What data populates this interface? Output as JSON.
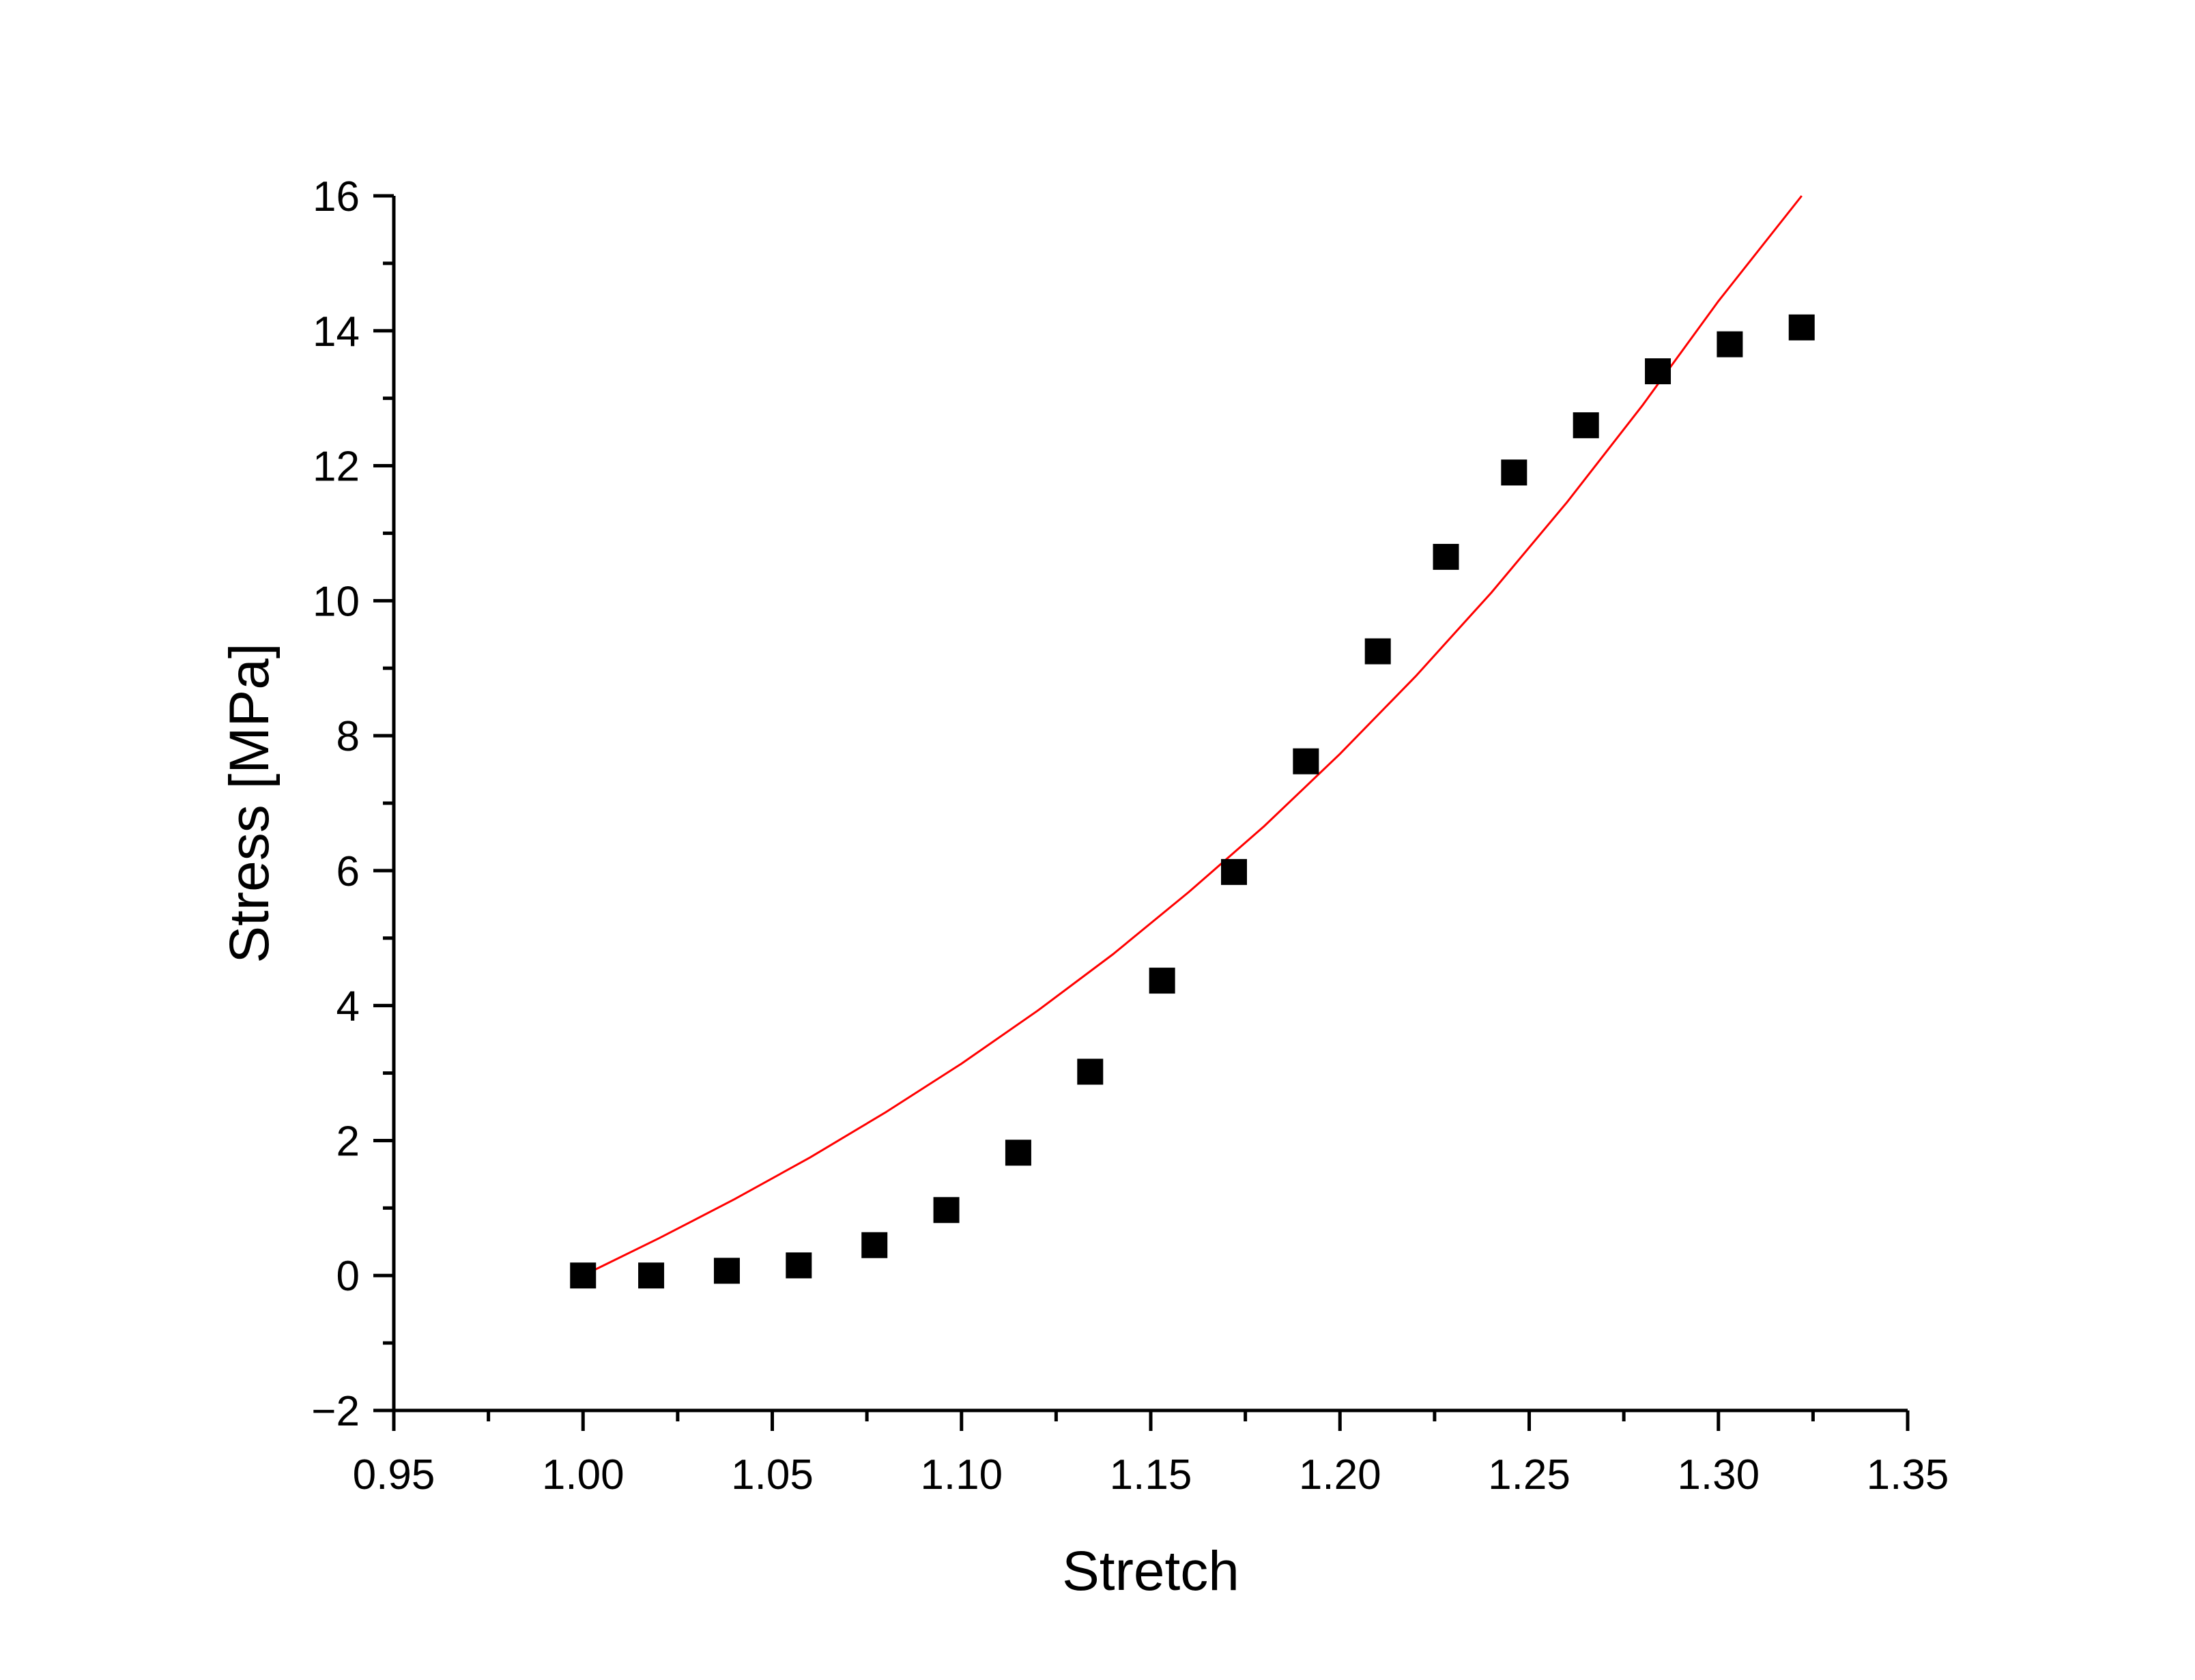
{
  "chart_data": {
    "type": "scatter",
    "title": "",
    "xlabel": "Stretch",
    "ylabel": "Stress [MPa]",
    "xlim": [
      0.95,
      1.35
    ],
    "ylim": [
      -2,
      16
    ],
    "xticks": [
      "0.95",
      "1.00",
      "1.05",
      "1.10",
      "1.15",
      "1.20",
      "1.25",
      "1.30",
      "1.35"
    ],
    "yticks": [
      "−2",
      "0",
      "2",
      "4",
      "6",
      "8",
      "10",
      "12",
      "14",
      "16"
    ],
    "grid": false,
    "legend": "none",
    "series": [
      {
        "kind": "markers",
        "marker": "square",
        "color": "#000000",
        "x": [
          1.0,
          1.018,
          1.038,
          1.057,
          1.077,
          1.096,
          1.115,
          1.134,
          1.153,
          1.172,
          1.191,
          1.21,
          1.228,
          1.246,
          1.265,
          1.284,
          1.303,
          1.322
        ],
        "y": [
          0.0,
          0.0,
          0.07,
          0.15,
          0.45,
          0.97,
          1.82,
          3.02,
          4.37,
          5.98,
          7.62,
          9.25,
          10.65,
          11.9,
          12.6,
          13.4,
          13.8,
          14.05
        ]
      },
      {
        "kind": "line",
        "color": "#ff0000",
        "x": [
          1.0,
          1.02,
          1.04,
          1.06,
          1.08,
          1.1,
          1.12,
          1.14,
          1.16,
          1.18,
          1.2,
          1.22,
          1.24,
          1.26,
          1.28,
          1.3,
          1.322
        ],
        "y": [
          0.0,
          0.55,
          1.13,
          1.75,
          2.42,
          3.14,
          3.92,
          4.76,
          5.68,
          6.66,
          7.73,
          8.88,
          10.12,
          11.46,
          12.9,
          14.44,
          16.0
        ]
      }
    ]
  }
}
